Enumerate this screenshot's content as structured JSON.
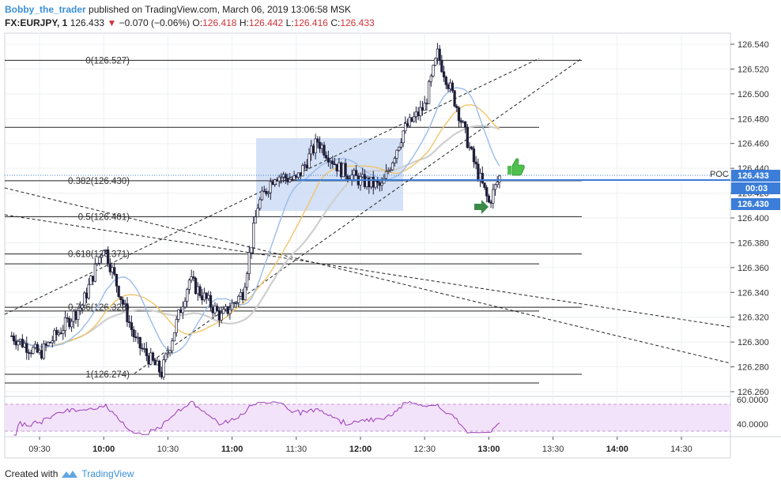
{
  "header": {
    "author": "Bobby_the_trader",
    "published": "published on TradingView.com, March 06, 2019 13:06:58 MSK",
    "symbol": "FX:EURJPY, 1",
    "last": "126.433",
    "change": "−0.070 (−0.06%)",
    "o_label": "O:",
    "o_val": "126.418",
    "h_label": "H:",
    "h_val": "126.442",
    "l_label": "L:",
    "l_val": "126.416",
    "c_label": "C:",
    "c_val": "126.433"
  },
  "footer": {
    "created": "Created with",
    "brand": "TradingView"
  },
  "price_axis": {
    "ticks": [
      "126.540",
      "126.520",
      "126.500",
      "126.480",
      "126.460",
      "126.440",
      "126.420",
      "126.400",
      "126.380",
      "126.360",
      "126.340",
      "126.320",
      "126.300",
      "126.280",
      "126.260"
    ],
    "last_badge": "126.433",
    "countdown": "00:03",
    "level_badge": "126.430",
    "poc_label": "POC"
  },
  "time_axis": {
    "ticks": [
      "09:30",
      "10:00",
      "10:30",
      "11:00",
      "11:30",
      "12:00",
      "12:30",
      "13:00",
      "13:30",
      "14:00",
      "14:30"
    ],
    "bold": [
      "10:00",
      "11:00",
      "12:00",
      "13:00",
      "14:00"
    ]
  },
  "fib_levels": [
    {
      "label": "0(126.527)",
      "price": 126.527
    },
    {
      "label": "0.382(126.430)",
      "price": 126.43
    },
    {
      "label": "0.5(126.401)",
      "price": 126.401
    },
    {
      "label": "0.618(126.371)",
      "price": 126.371
    },
    {
      "label": "0.786(126.328)",
      "price": 126.328
    },
    {
      "label": "1(126.274)",
      "price": 126.274
    }
  ],
  "rsi": {
    "ticks": [
      "60.0000",
      "40.0000"
    ]
  },
  "colors": {
    "up": "#ffffff",
    "down": "#1f1f3a",
    "ma_fast": "#9bbcea",
    "ma_mid": "#f0c56a",
    "ma_slow": "#cfcfcf",
    "box": "#cddcf5",
    "rsi_band": "#f3e3fa",
    "rsi_line": "#9b3bb8",
    "poc": "#3b7dd8",
    "thumb": "#4ec04e",
    "arrow": "#3a8a4a"
  },
  "icons": {
    "thumb": "thumbs-up-icon",
    "arrow": "right-arrow-icon",
    "logo": "tradingview-logo-icon"
  },
  "chart_data": {
    "type": "candlestick",
    "symbol": "FX:EURJPY",
    "interval": "1",
    "ylim": [
      126.255,
      126.545
    ],
    "x_range": [
      "09:17",
      "14:53"
    ],
    "key_points": [
      {
        "time": "09:17",
        "price": 126.305
      },
      {
        "time": "09:30",
        "price": 126.29
      },
      {
        "time": "09:50",
        "price": 126.33
      },
      {
        "time": "10:00",
        "price": 126.378
      },
      {
        "time": "10:15",
        "price": 126.3
      },
      {
        "time": "10:27",
        "price": 126.275
      },
      {
        "time": "10:40",
        "price": 126.35
      },
      {
        "time": "10:55",
        "price": 126.32
      },
      {
        "time": "11:05",
        "price": 126.34
      },
      {
        "time": "11:12",
        "price": 126.41
      },
      {
        "time": "11:20",
        "price": 126.435
      },
      {
        "time": "11:30",
        "price": 126.43
      },
      {
        "time": "11:40",
        "price": 126.462
      },
      {
        "time": "11:50",
        "price": 126.44
      },
      {
        "time": "12:00",
        "price": 126.43
      },
      {
        "time": "12:10",
        "price": 126.425
      },
      {
        "time": "12:20",
        "price": 126.47
      },
      {
        "time": "12:30",
        "price": 126.49
      },
      {
        "time": "12:36",
        "price": 126.532
      },
      {
        "time": "12:45",
        "price": 126.49
      },
      {
        "time": "12:53",
        "price": 126.445
      },
      {
        "time": "13:00",
        "price": 126.412
      },
      {
        "time": "13:05",
        "price": 126.433
      }
    ]
  }
}
